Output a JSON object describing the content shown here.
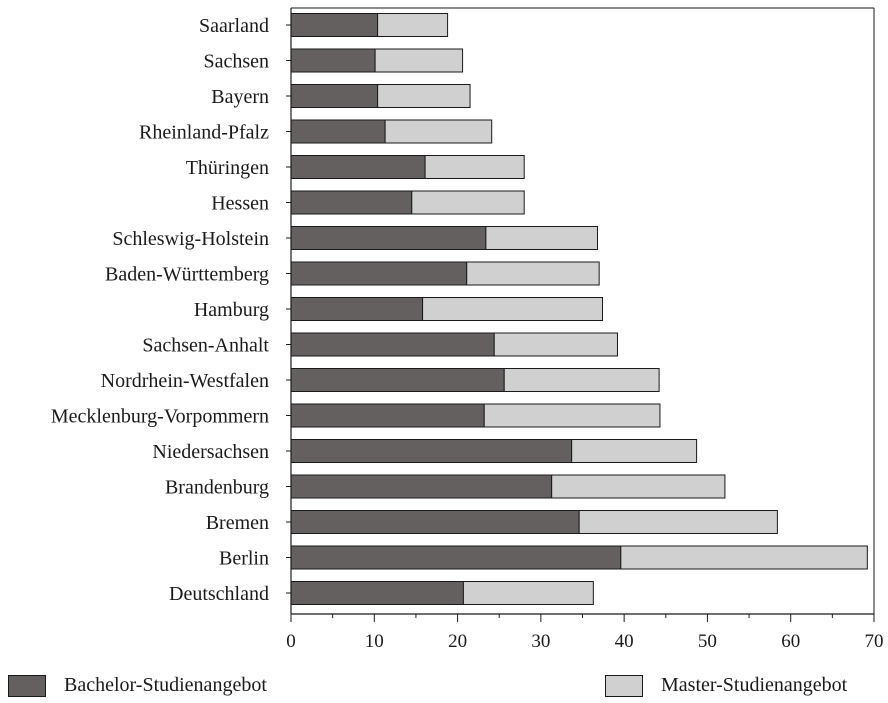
{
  "chart_data": {
    "type": "bar",
    "orientation": "horizontal",
    "stacked": true,
    "categories": [
      "Saarland",
      "Sachsen",
      "Bayern",
      "Rheinland-Pfalz",
      "Thüringen",
      "Hessen",
      "Schleswig-Holstein",
      "Baden-Württemberg",
      "Hamburg",
      "Sachsen-Anhalt",
      "Nordrhein-Westfalen",
      "Mecklenburg-Vorpommern",
      "Niedersachsen",
      "Brandenburg",
      "Bremen",
      "Berlin",
      "Deutschland"
    ],
    "series": [
      {
        "name": "Bachelor-Studienangebot",
        "color": "#656060",
        "values": [
          10.4,
          10.1,
          10.4,
          11.3,
          16.1,
          14.5,
          23.4,
          21.1,
          15.8,
          24.4,
          25.6,
          23.2,
          33.7,
          31.3,
          34.6,
          39.6,
          20.7
        ]
      },
      {
        "name": "Master-Studienangebot",
        "color": "#d0d0d0",
        "values": [
          8.4,
          10.5,
          11.1,
          12.8,
          11.9,
          13.5,
          13.4,
          15.9,
          21.6,
          14.8,
          18.6,
          21.1,
          15.0,
          20.8,
          23.8,
          29.6,
          15.6
        ]
      }
    ],
    "xticks": [
      0,
      10,
      20,
      30,
      40,
      50,
      60,
      70
    ],
    "xlim": [
      0,
      70
    ],
    "grid": false,
    "legend_position": "bottom"
  }
}
